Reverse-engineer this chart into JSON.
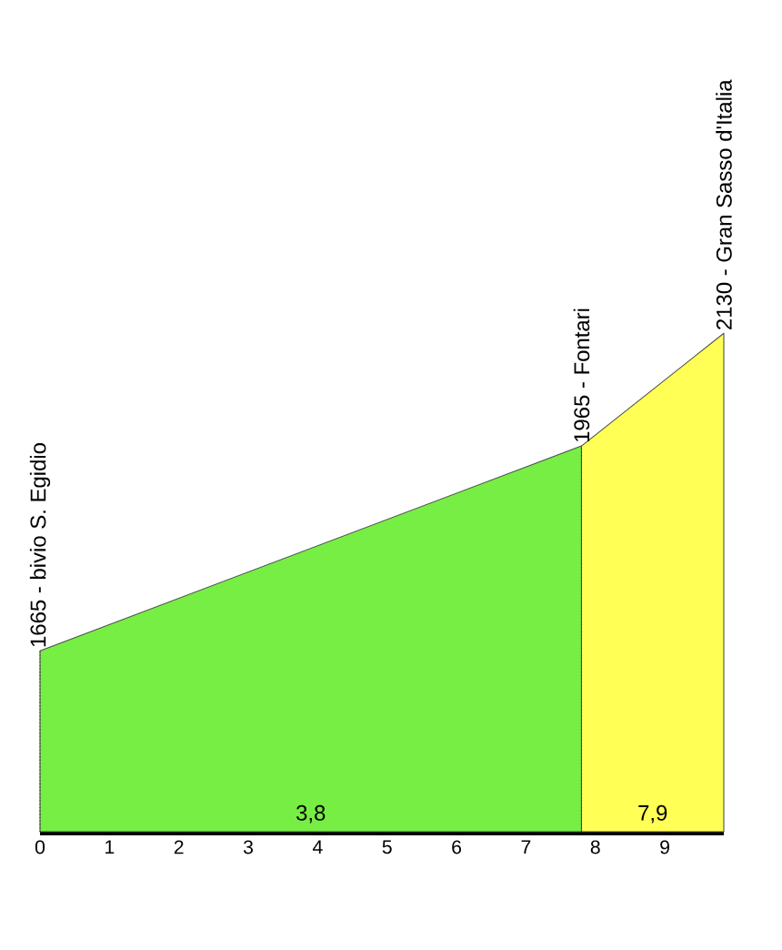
{
  "chart_data": {
    "type": "area",
    "xlim": [
      0,
      9.85
    ],
    "xticks": [
      0,
      1,
      2,
      3,
      4,
      5,
      6,
      7,
      8,
      9
    ],
    "tick_labels": "x",
    "grid": false,
    "series": [
      {
        "color": "#77ee44",
        "x": [
          0,
          7.8
        ],
        "values": [
          1665,
          1965
        ],
        "value_labels": [
          "1665 - bivio S. Egidio",
          "1965 - Fontari"
        ]
      },
      {
        "color": "#ffff55",
        "x": [
          7.8,
          9.85
        ],
        "values": [
          1965,
          2130
        ],
        "value_labels": [
          null,
          "2130 - Gran Sasso d'Italia"
        ]
      }
    ],
    "annotations": [
      "3,8",
      "7,9"
    ]
  }
}
